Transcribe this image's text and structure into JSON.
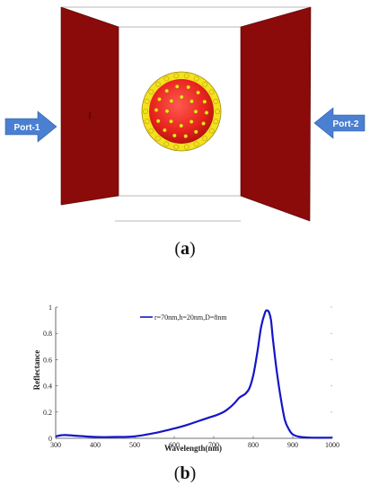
{
  "panel_a": {
    "caption_open": "(",
    "caption_letter": "a",
    "caption_close": ")",
    "port_left_label": "Port-1",
    "port_right_label": "Port-2",
    "colors": {
      "plate": "#8b0a0a",
      "sphere": "#e8221c",
      "particles": "#f5e11e",
      "arrow": "#4a7fd1"
    }
  },
  "panel_b": {
    "caption_open": "(",
    "caption_letter": "b",
    "caption_close": ")"
  },
  "chart_data": {
    "type": "line",
    "xlabel": "Wavelength(nm)",
    "ylabel": "Reflectance",
    "xlim": [
      300,
      1000
    ],
    "ylim": [
      0,
      1
    ],
    "xticks": [
      "300",
      "400",
      "500",
      "600",
      "700",
      "800",
      "900",
      "1000"
    ],
    "yticks": [
      "0",
      "0.2",
      "0.4",
      "0.6",
      "0.8",
      "1"
    ],
    "grid": false,
    "legend_position": "top-center",
    "series": [
      {
        "name": "r=70nm,h=20nm,D=8nm",
        "color": "#1515c8",
        "x": [
          300,
          320,
          350,
          400,
          450,
          500,
          550,
          600,
          630,
          660,
          690,
          710,
          730,
          750,
          765,
          780,
          790,
          800,
          810,
          820,
          830,
          835,
          840,
          845,
          850,
          860,
          870,
          880,
          890,
          900,
          920,
          950,
          1000
        ],
        "y": [
          0.015,
          0.025,
          0.02,
          0.01,
          0.01,
          0.015,
          0.04,
          0.075,
          0.1,
          0.13,
          0.16,
          0.18,
          0.21,
          0.26,
          0.31,
          0.34,
          0.38,
          0.48,
          0.65,
          0.85,
          0.96,
          0.975,
          0.96,
          0.9,
          0.75,
          0.5,
          0.3,
          0.14,
          0.07,
          0.03,
          0.01,
          0.005,
          0.005
        ]
      }
    ]
  }
}
